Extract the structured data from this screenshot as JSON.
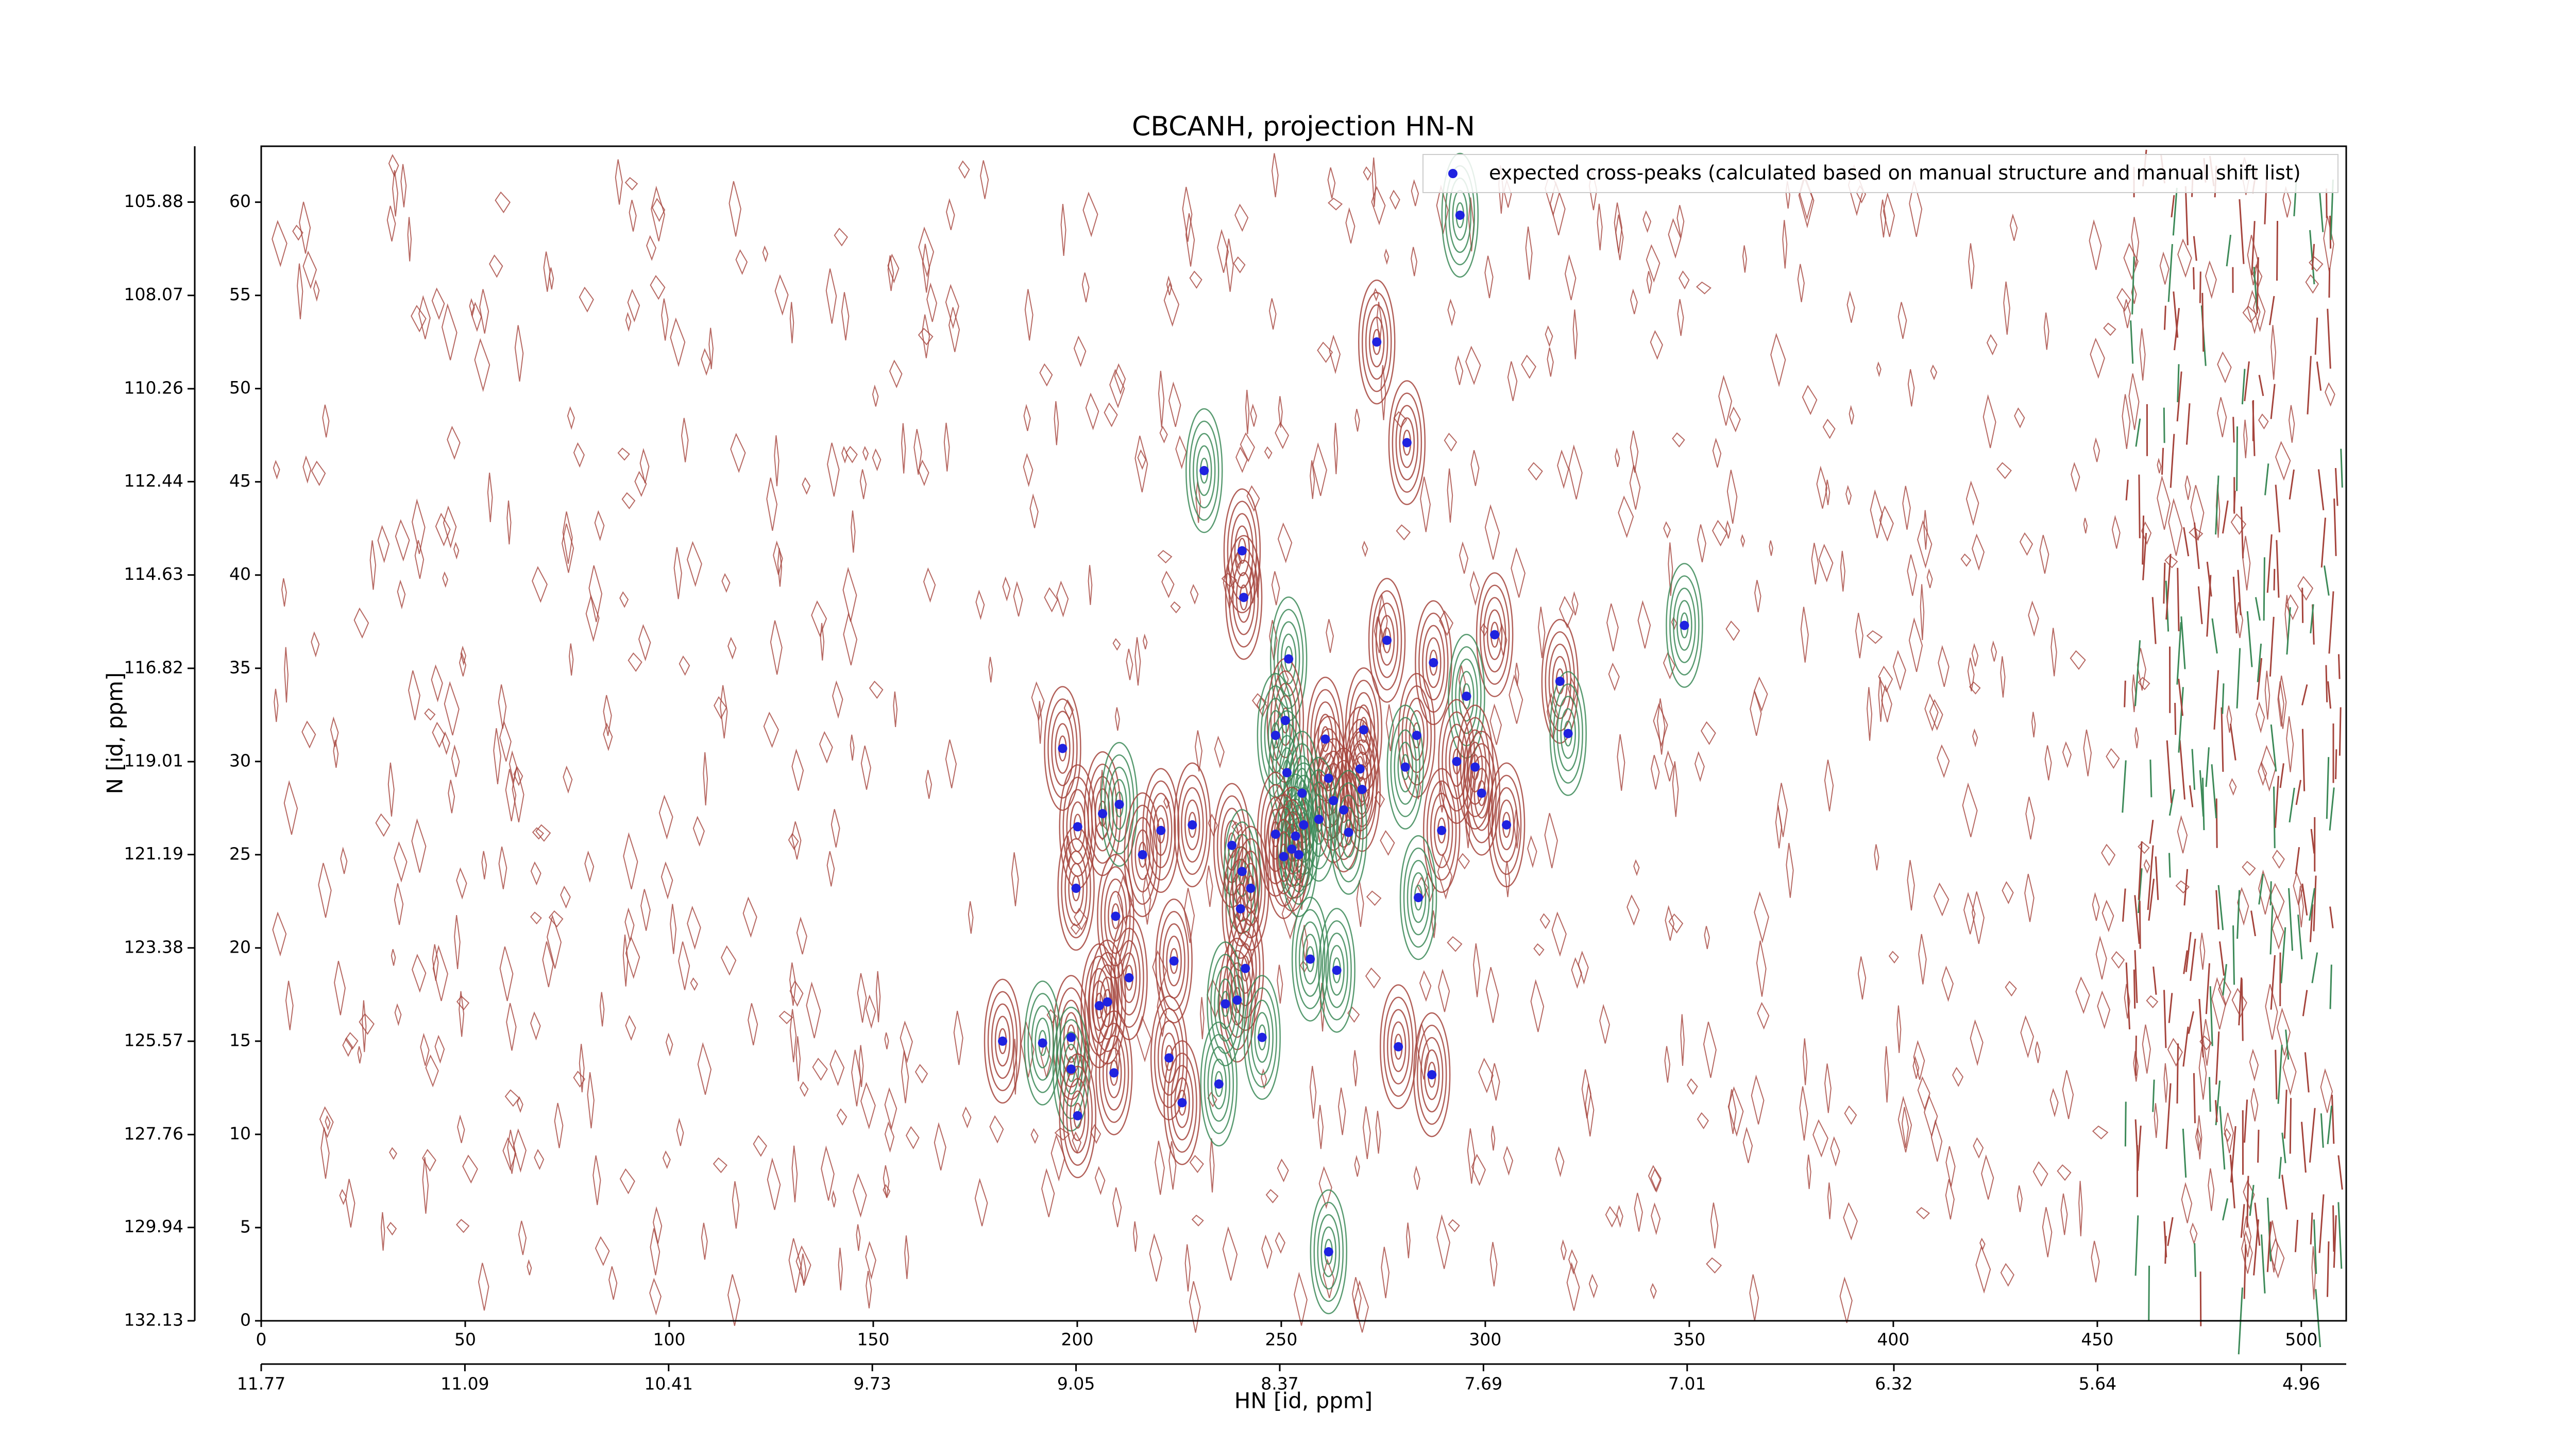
{
  "chart_data": {
    "type": "scatter",
    "title": "CBCANH, projection HN-N",
    "xlabel": "HN [id, ppm]",
    "ylabel": "N [id, ppm]",
    "xlim": [
      0,
      511
    ],
    "xticks": [
      0,
      50,
      100,
      150,
      200,
      250,
      300,
      350,
      400,
      450,
      500
    ],
    "ylim": [
      0,
      63
    ],
    "yticks": [
      0,
      5,
      10,
      15,
      20,
      25,
      30,
      35,
      40,
      45,
      50,
      55,
      60
    ],
    "x2lim": [
      11.77,
      4.81
    ],
    "x2ticks": [
      11.77,
      11.09,
      10.41,
      9.73,
      9.05,
      8.37,
      7.69,
      7.01,
      6.32,
      5.64,
      4.96
    ],
    "y2lim": [
      132.13,
      104.57
    ],
    "y2ticks": [
      132.13,
      129.94,
      127.76,
      125.57,
      123.38,
      121.19,
      119.01,
      116.82,
      114.63,
      112.44,
      110.26,
      108.07,
      105.88
    ],
    "legend": "upper right",
    "contour_colors": [
      "#a5443c",
      "#3c8a58"
    ],
    "series": [
      {
        "name": "expected cross-peaks (calculated based on manual structure and manual shift list)",
        "color": "#1f22e0",
        "x": [
          293.8,
          273.4,
          280.8,
          231.1,
          240.4,
          240.8,
          348.8,
          275.9,
          302.3,
          251.8,
          287.3,
          318.3,
          295.4,
          251.0,
          270.2,
          248.6,
          260.8,
          283.2,
          320.3,
          196.4,
          293.0,
          280.4,
          269.3,
          297.5,
          251.4,
          261.6,
          269.8,
          255.1,
          299.1,
          206.2,
          210.3,
          262.8,
          265.3,
          259.2,
          305.2,
          228.2,
          255.5,
          220.5,
          200.1,
          266.5,
          289.3,
          248.6,
          253.5,
          237.9,
          252.6,
          254.3,
          216.0,
          250.6,
          240.4,
          199.7,
          242.5,
          283.6,
          240.0,
          209.4,
          257.1,
          223.7,
          241.2,
          263.6,
          212.7,
          239.2,
          236.3,
          207.4,
          205.4,
          245.3,
          198.5,
          181.7,
          191.5,
          278.7,
          222.5,
          198.5,
          209.0,
          286.9,
          234.7,
          225.7,
          200.1,
          261.6
        ],
        "values": [
          59.3,
          52.5,
          47.1,
          45.6,
          41.3,
          38.8,
          37.3,
          36.5,
          36.8,
          35.5,
          35.3,
          34.3,
          33.5,
          32.2,
          31.7,
          31.4,
          31.2,
          31.4,
          31.5,
          30.7,
          30.0,
          29.7,
          29.6,
          29.7,
          29.4,
          29.1,
          28.5,
          28.3,
          28.3,
          27.2,
          27.7,
          27.9,
          27.4,
          26.9,
          26.6,
          26.6,
          26.6,
          26.3,
          26.5,
          26.2,
          26.3,
          26.1,
          26.0,
          25.5,
          25.3,
          25.0,
          25.0,
          24.9,
          24.1,
          23.2,
          23.2,
          22.7,
          22.1,
          21.7,
          19.4,
          19.3,
          18.9,
          18.8,
          18.4,
          17.2,
          17.0,
          17.1,
          16.9,
          15.2,
          15.2,
          15.0,
          14.9,
          14.7,
          14.1,
          13.5,
          13.3,
          13.2,
          12.7,
          11.7,
          11.0,
          3.7
        ]
      }
    ]
  }
}
